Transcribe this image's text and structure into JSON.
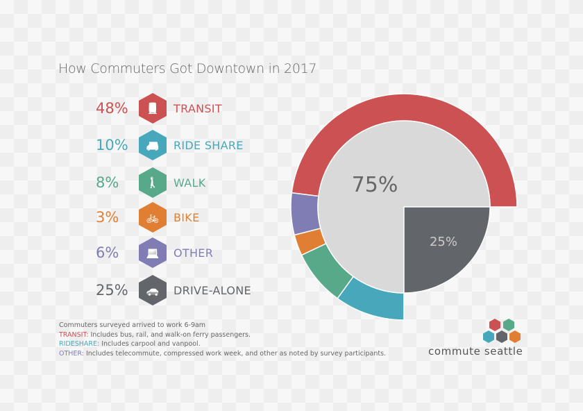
{
  "title": "How Commuters Got Downtown in 2017",
  "rows": [
    {
      "pct": "48%",
      "label": "TRANSIT",
      "color": "#cc5152",
      "icon": "train-icon",
      "glyph": "🚆"
    },
    {
      "pct": "10%",
      "label": "RIDE SHARE",
      "color": "#47a8bb",
      "icon": "van-icon",
      "glyph": "🚐"
    },
    {
      "pct": "8%",
      "label": "WALK",
      "color": "#58a98a",
      "icon": "walk-icon",
      "glyph": "🚶"
    },
    {
      "pct": "3%",
      "label": "BIKE",
      "color": "#e07f34",
      "icon": "bike-icon",
      "glyph": "🚲"
    },
    {
      "pct": "6%",
      "label": "OTHER",
      "color": "#7f7db3",
      "icon": "laptop-icon",
      "glyph": "💻"
    },
    {
      "pct": "25%",
      "label": "DRIVE-ALONE",
      "color": "#626569",
      "icon": "car-icon",
      "glyph": "🚗"
    }
  ],
  "notes": {
    "line1": "Commuters surveyed arrived to work 6-9am",
    "transit_key": "TRANSIT:",
    "transit_text": " Includes bus, rail, and walk-on ferry passengers.",
    "rideshare_key": "RIDESHARE:",
    "rideshare_text": " Includes carpool and vanpool.",
    "other_key": "OTHER:",
    "other_text": " Includes telecommute, compressed work week, and other as noted by survey participants."
  },
  "logo": "commute seattle",
  "chart_data": {
    "type": "pie",
    "inner": [
      {
        "label": "75%",
        "value": 75,
        "color": "#d9d9d9",
        "text_color": "#666"
      },
      {
        "label": "25%",
        "value": 25,
        "color": "#626569",
        "text_color": "#ccc"
      }
    ],
    "ring_order": [
      "RIDE SHARE",
      "WALK",
      "BIKE",
      "OTHER",
      "TRANSIT"
    ],
    "ring": [
      {
        "name": "RIDE SHARE",
        "value": 10,
        "color": "#47a8bb"
      },
      {
        "name": "WALK",
        "value": 8,
        "color": "#58a98a"
      },
      {
        "name": "BIKE",
        "value": 3,
        "color": "#e07f34"
      },
      {
        "name": "OTHER",
        "value": 6,
        "color": "#7f7db3"
      },
      {
        "name": "TRANSIT",
        "value": 48,
        "color": "#cc5152"
      }
    ]
  }
}
